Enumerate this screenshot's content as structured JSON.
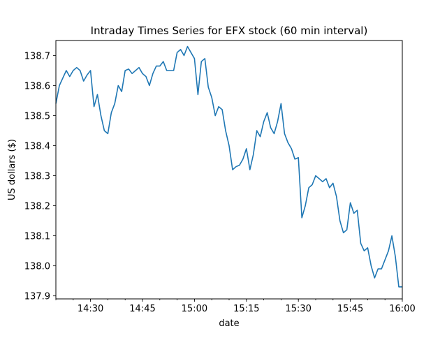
{
  "chart_data": {
    "type": "line",
    "title": "Intraday Times Series for EFX stock (60 min interval)",
    "xlabel": "date",
    "ylabel": "US dollars ($)",
    "x_unit": "time of day",
    "x_range": [
      "14:20",
      "16:00"
    ],
    "ylim": [
      137.89,
      138.75
    ],
    "x_ticks": [
      "14:30",
      "14:45",
      "15:00",
      "15:15",
      "15:30",
      "15:45",
      "16:00"
    ],
    "y_ticks": [
      "137.9",
      "138.0",
      "138.1",
      "138.2",
      "138.3",
      "138.4",
      "138.5",
      "138.6",
      "138.7"
    ],
    "grid": false,
    "legend": "none",
    "series": [
      {
        "color": "#1f77b4",
        "x": [
          "14:20",
          "14:21",
          "14:22",
          "14:23",
          "14:24",
          "14:25",
          "14:26",
          "14:27",
          "14:28",
          "14:29",
          "14:30",
          "14:31",
          "14:32",
          "14:33",
          "14:34",
          "14:35",
          "14:36",
          "14:37",
          "14:38",
          "14:39",
          "14:40",
          "14:41",
          "14:42",
          "14:43",
          "14:44",
          "14:45",
          "14:46",
          "14:47",
          "14:48",
          "14:49",
          "14:50",
          "14:51",
          "14:52",
          "14:53",
          "14:54",
          "14:55",
          "14:56",
          "14:57",
          "14:58",
          "14:59",
          "15:00",
          "15:01",
          "15:02",
          "15:03",
          "15:04",
          "15:05",
          "15:06",
          "15:07",
          "15:08",
          "15:09",
          "15:10",
          "15:11",
          "15:12",
          "15:13",
          "15:14",
          "15:15",
          "15:16",
          "15:17",
          "15:18",
          "15:19",
          "15:20",
          "15:21",
          "15:22",
          "15:23",
          "15:24",
          "15:25",
          "15:26",
          "15:27",
          "15:28",
          "15:29",
          "15:30",
          "15:31",
          "15:32",
          "15:33",
          "15:34",
          "15:35",
          "15:36",
          "15:37",
          "15:38",
          "15:39",
          "15:40",
          "15:41",
          "15:42",
          "15:43",
          "15:44",
          "15:45",
          "15:46",
          "15:47",
          "15:48",
          "15:49",
          "15:50",
          "15:51",
          "15:52",
          "15:53",
          "15:54",
          "15:55",
          "15:56",
          "15:57",
          "15:58",
          "15:59",
          "16:00"
        ],
        "values": [
          138.54,
          138.6,
          138.625,
          138.65,
          138.63,
          138.65,
          138.66,
          138.65,
          138.615,
          138.635,
          138.65,
          138.53,
          138.57,
          138.5,
          138.45,
          138.44,
          138.51,
          138.54,
          138.6,
          138.58,
          138.65,
          138.655,
          138.64,
          138.65,
          138.66,
          138.64,
          138.63,
          138.6,
          138.64,
          138.665,
          138.665,
          138.68,
          138.65,
          138.65,
          138.65,
          138.71,
          138.72,
          138.7,
          138.73,
          138.71,
          138.69,
          138.57,
          138.68,
          138.69,
          138.595,
          138.56,
          138.5,
          138.53,
          138.52,
          138.45,
          138.4,
          138.32,
          138.33,
          138.335,
          138.355,
          138.39,
          138.32,
          138.37,
          138.45,
          138.43,
          138.48,
          138.51,
          138.46,
          138.44,
          138.48,
          138.54,
          138.44,
          138.41,
          138.39,
          138.355,
          138.36,
          138.16,
          138.2,
          138.26,
          138.27,
          138.3,
          138.29,
          138.28,
          138.29,
          138.26,
          138.275,
          138.23,
          138.15,
          138.11,
          138.12,
          138.21,
          138.175,
          138.185,
          138.075,
          138.05,
          138.06,
          138.0,
          137.96,
          137.99,
          137.99,
          138.02,
          138.05,
          138.1,
          138.03,
          137.93,
          137.93
        ]
      }
    ]
  }
}
